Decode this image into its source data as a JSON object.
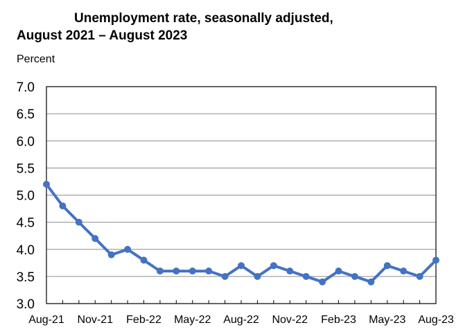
{
  "chart_data": {
    "type": "line",
    "title_line1": "Unemployment rate, seasonally adjusted,",
    "title_line2": "August 2021 – August 2023",
    "ylabel": "Percent",
    "xlabel": "",
    "ylim": [
      3.0,
      7.0
    ],
    "ytick_step": 0.5,
    "grid": "horizontal",
    "x": [
      "Aug-21",
      "Sep-21",
      "Oct-21",
      "Nov-21",
      "Dec-21",
      "Jan-22",
      "Feb-22",
      "Mar-22",
      "Apr-22",
      "May-22",
      "Jun-22",
      "Jul-22",
      "Aug-22",
      "Sep-22",
      "Oct-22",
      "Nov-22",
      "Dec-22",
      "Jan-23",
      "Feb-23",
      "Mar-23",
      "Apr-23",
      "May-23",
      "Jun-23",
      "Jul-23",
      "Aug-23"
    ],
    "values": [
      5.2,
      4.8,
      4.5,
      4.2,
      3.9,
      4.0,
      3.8,
      3.6,
      3.6,
      3.6,
      3.6,
      3.5,
      3.7,
      3.5,
      3.7,
      3.6,
      3.5,
      3.4,
      3.6,
      3.5,
      3.4,
      3.7,
      3.6,
      3.5,
      3.8
    ],
    "xtick_labels": [
      "Aug-21",
      "Nov-21",
      "Feb-22",
      "May-22",
      "Aug-22",
      "Nov-22",
      "Feb-23",
      "May-23",
      "Aug-23"
    ],
    "line_color": "#4472C4"
  }
}
